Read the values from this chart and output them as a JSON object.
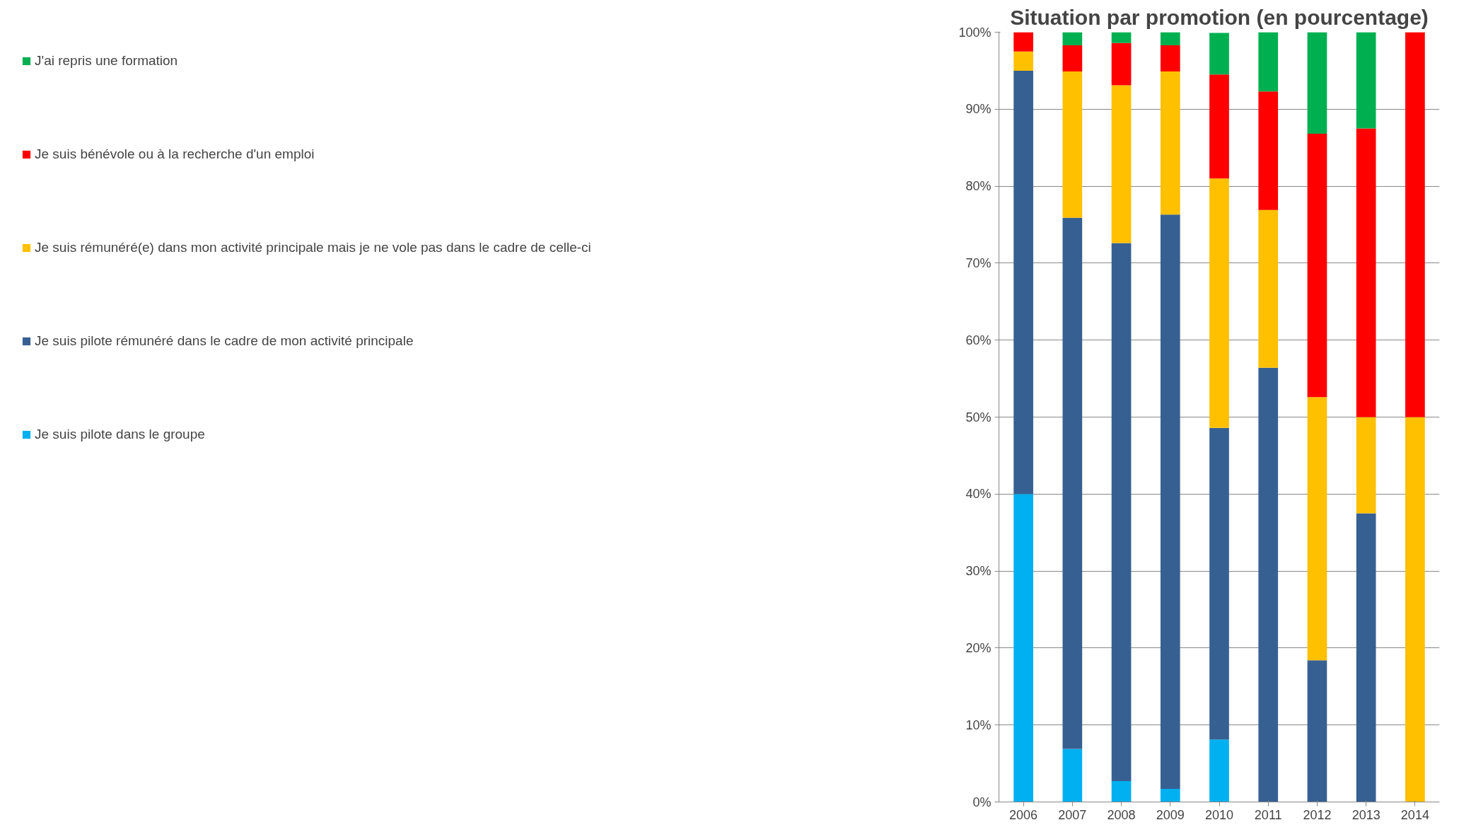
{
  "chart_data": {
    "type": "bar",
    "title": "Situation par promotion (en pourcentage)",
    "stacked": true,
    "categories": [
      "2006",
      "2007",
      "2008",
      "2009",
      "2010",
      "2011",
      "2012",
      "2013",
      "2014"
    ],
    "series": [
      {
        "name": "Je suis pilote dans le groupe",
        "color": "#00b0f0",
        "values": [
          40,
          6.9,
          2.7,
          1.7,
          8.1,
          0,
          0,
          0,
          0
        ]
      },
      {
        "name": "Je suis pilote rémunéré dans le cadre de mon activité principale",
        "color": "#376092",
        "values": [
          55,
          69,
          69.9,
          74.6,
          40.5,
          56.4,
          18.4,
          37.5,
          0
        ]
      },
      {
        "name": "Je suis rémunéré(e) dans mon activité principale mais je ne vole pas dans le cadre de celle-ci",
        "color": "#ffc000",
        "values": [
          2.5,
          19,
          20.5,
          18.6,
          32.4,
          20.5,
          34.2,
          12.5,
          50
        ]
      },
      {
        "name": "Je suis bénévole ou à la recherche d'un emploi",
        "color": "#ff0000",
        "values": [
          2.5,
          3.4,
          5.5,
          3.4,
          13.5,
          15.4,
          34.2,
          37.5,
          50
        ]
      },
      {
        "name": "J'ai repris une formation",
        "color": "#00b050",
        "values": [
          0,
          1.7,
          1.4,
          1.7,
          5.4,
          7.7,
          13.2,
          12.5,
          0
        ]
      }
    ],
    "ylim": [
      0,
      100
    ],
    "yticks": [
      {
        "value": 0,
        "label": "0%"
      },
      {
        "value": 10,
        "label": "10%"
      },
      {
        "value": 20,
        "label": "20%"
      },
      {
        "value": 30,
        "label": "30%"
      },
      {
        "value": 40,
        "label": "40%"
      },
      {
        "value": 50,
        "label": "50%"
      },
      {
        "value": 60,
        "label": "60%"
      },
      {
        "value": 70,
        "label": "70%"
      },
      {
        "value": 80,
        "label": "80%"
      },
      {
        "value": 90,
        "label": "90%"
      },
      {
        "value": 100,
        "label": "100%"
      }
    ],
    "grid": "y",
    "legend": "left"
  }
}
